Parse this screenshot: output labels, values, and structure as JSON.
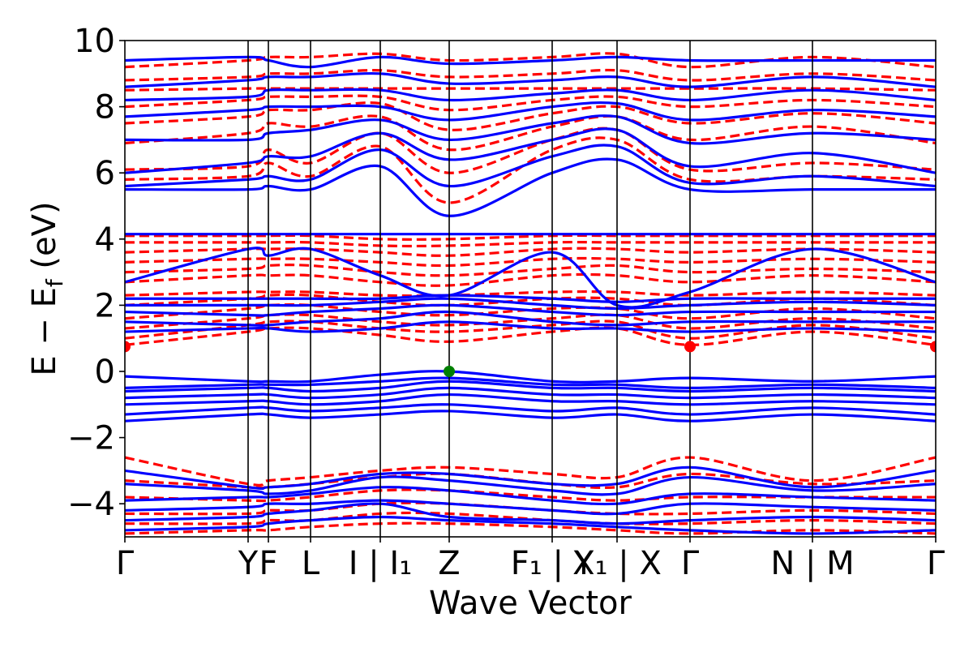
{
  "chart_data": {
    "type": "line",
    "title": "",
    "xlabel": "Wave Vector",
    "ylabel": "E − E",
    "ylabel_sub": "f",
    "ylabel_unit": " (eV)",
    "ylim": [
      -5,
      10
    ],
    "yticks": [
      {
        "value": 10,
        "label": "10"
      },
      {
        "value": 8,
        "label": "8"
      },
      {
        "value": 6,
        "label": "6"
      },
      {
        "value": 4,
        "label": "4"
      },
      {
        "value": 2,
        "label": "2"
      },
      {
        "value": 0,
        "label": "0"
      },
      {
        "value": -2,
        "label": "−2"
      },
      {
        "value": -4,
        "label": "−4"
      }
    ],
    "xlim": [
      0,
      1
    ],
    "kpoints": [
      {
        "x": 0.0,
        "label": "Γ"
      },
      {
        "x": 0.152,
        "label": "Y"
      },
      {
        "x": 0.177,
        "label": "F"
      },
      {
        "x": 0.229,
        "label": "L"
      },
      {
        "x": 0.315,
        "label": "I | I₁"
      },
      {
        "x": 0.4,
        "label": "Z"
      },
      {
        "x": 0.527,
        "label": "F₁ | Y"
      },
      {
        "x": 0.607,
        "label": "X₁ | X"
      },
      {
        "x": 0.697,
        "label": "Γ"
      },
      {
        "x": 0.848,
        "label": "N | M"
      },
      {
        "x": 1.0,
        "label": "Γ"
      }
    ],
    "series": [
      {
        "style": "solid",
        "color": "#0000ff",
        "bands": [
          [
            -4.8,
            -4.7,
            -4.6,
            -4.5,
            -4.4,
            -4.5,
            -4.6,
            -4.7,
            -4.8,
            -4.9,
            -4.8
          ],
          [
            -4.5,
            -4.4,
            -4.3,
            -4.2,
            -4.0,
            -4.4,
            -4.5,
            -4.6,
            -4.5,
            -4.4,
            -4.5
          ],
          [
            -4.2,
            -4.1,
            -4.0,
            -4.0,
            -3.9,
            -4.0,
            -4.2,
            -4.3,
            -4.0,
            -4.1,
            -4.2
          ],
          [
            -3.9,
            -3.8,
            -3.8,
            -3.7,
            -3.5,
            -3.6,
            -3.9,
            -4.0,
            -3.7,
            -3.8,
            -3.9
          ],
          [
            -3.4,
            -3.6,
            -3.7,
            -3.6,
            -3.2,
            -3.3,
            -3.6,
            -3.7,
            -3.2,
            -3.6,
            -3.4
          ],
          [
            -3.0,
            -3.5,
            -3.5,
            -3.4,
            -3.1,
            -3.1,
            -3.4,
            -3.4,
            -2.9,
            -3.5,
            -3.0
          ],
          [
            -1.5,
            -1.3,
            -1.3,
            -1.4,
            -1.3,
            -1.2,
            -1.4,
            -1.3,
            -1.5,
            -1.3,
            -1.5
          ],
          [
            -1.3,
            -1.1,
            -1.1,
            -1.2,
            -1.1,
            -1.0,
            -1.2,
            -1.1,
            -1.3,
            -1.1,
            -1.3
          ],
          [
            -1.0,
            -0.9,
            -0.9,
            -1.0,
            -0.9,
            -0.7,
            -0.9,
            -0.9,
            -1.0,
            -0.9,
            -1.0
          ],
          [
            -0.8,
            -0.7,
            -0.7,
            -0.8,
            -0.7,
            -0.5,
            -0.7,
            -0.7,
            -0.8,
            -0.7,
            -0.8
          ],
          [
            -0.6,
            -0.5,
            -0.5,
            -0.6,
            -0.5,
            -0.3,
            -0.5,
            -0.5,
            -0.6,
            -0.5,
            -0.6
          ],
          [
            -0.5,
            -0.4,
            -0.4,
            -0.4,
            -0.3,
            -0.2,
            -0.4,
            -0.4,
            -0.5,
            -0.4,
            -0.5
          ],
          [
            -0.15,
            -0.3,
            -0.3,
            -0.3,
            -0.1,
            0.0,
            -0.3,
            -0.3,
            -0.2,
            -0.3,
            -0.15
          ],
          [
            1.2,
            1.3,
            1.3,
            1.2,
            1.3,
            1.5,
            1.3,
            1.3,
            1.2,
            1.3,
            1.2
          ],
          [
            1.5,
            1.4,
            1.4,
            1.5,
            1.6,
            1.8,
            1.5,
            1.4,
            1.5,
            1.5,
            1.5
          ],
          [
            1.8,
            1.7,
            1.7,
            1.8,
            1.9,
            2.0,
            1.8,
            1.7,
            1.8,
            1.8,
            1.8
          ],
          [
            2.0,
            2.0,
            2.0,
            2.0,
            2.1,
            2.2,
            2.0,
            1.9,
            2.0,
            2.1,
            2.0
          ],
          [
            2.2,
            2.2,
            2.2,
            2.2,
            2.2,
            2.3,
            2.2,
            2.1,
            2.2,
            2.2,
            2.2
          ],
          [
            2.7,
            3.7,
            3.5,
            3.7,
            2.9,
            2.3,
            3.6,
            2.0,
            2.4,
            3.7,
            2.7
          ],
          [
            4.15,
            4.15,
            4.15,
            4.15,
            4.15,
            4.15,
            4.15,
            4.15,
            4.15,
            4.15,
            4.15
          ],
          [
            5.5,
            5.5,
            5.6,
            5.5,
            6.2,
            4.7,
            6.0,
            6.4,
            5.5,
            5.5,
            5.5
          ],
          [
            5.6,
            5.8,
            5.9,
            5.8,
            6.7,
            5.6,
            6.5,
            6.8,
            5.7,
            5.9,
            5.6
          ],
          [
            6.0,
            6.3,
            6.5,
            6.5,
            7.2,
            6.4,
            7.0,
            7.3,
            6.2,
            6.6,
            6.0
          ],
          [
            7.0,
            7.0,
            7.2,
            7.3,
            7.6,
            7.0,
            7.5,
            7.7,
            6.9,
            7.2,
            7.0
          ],
          [
            7.7,
            7.9,
            8.0,
            8.0,
            8.0,
            7.6,
            8.0,
            8.1,
            7.6,
            7.9,
            7.7
          ],
          [
            8.2,
            8.3,
            8.5,
            8.5,
            8.5,
            8.2,
            8.4,
            8.5,
            8.2,
            8.5,
            8.2
          ],
          [
            8.6,
            8.8,
            8.9,
            8.9,
            9.0,
            8.7,
            8.8,
            8.9,
            8.6,
            8.9,
            8.6
          ],
          [
            9.4,
            9.5,
            9.4,
            9.2,
            9.5,
            9.3,
            9.4,
            9.5,
            9.4,
            9.4,
            9.4
          ]
        ]
      },
      {
        "style": "dashed",
        "color": "#ff0000",
        "bands": [
          [
            -4.9,
            -4.8,
            -4.8,
            -4.7,
            -4.6,
            -4.6,
            -4.7,
            -4.8,
            -4.9,
            -4.8,
            -4.9
          ],
          [
            -4.6,
            -4.6,
            -4.5,
            -4.5,
            -4.3,
            -4.3,
            -4.5,
            -4.6,
            -4.6,
            -4.5,
            -4.6
          ],
          [
            -4.3,
            -4.3,
            -4.2,
            -4.2,
            -4.0,
            -4.0,
            -4.2,
            -4.3,
            -4.3,
            -4.2,
            -4.3
          ],
          [
            -3.8,
            -3.9,
            -3.9,
            -3.8,
            -3.6,
            -3.6,
            -3.8,
            -3.9,
            -3.8,
            -3.8,
            -3.8
          ],
          [
            -3.3,
            -3.5,
            -3.5,
            -3.4,
            -3.2,
            -3.1,
            -3.4,
            -3.5,
            -3.1,
            -3.4,
            -3.3
          ],
          [
            -2.6,
            -3.4,
            -3.3,
            -3.2,
            -3.0,
            -2.9,
            -3.1,
            -3.2,
            -2.6,
            -3.3,
            -2.6
          ],
          [
            0.8,
            1.2,
            1.3,
            1.3,
            1.1,
            0.9,
            1.2,
            1.3,
            0.8,
            1.2,
            0.8
          ],
          [
            1.0,
            1.4,
            1.5,
            1.5,
            1.3,
            1.2,
            1.4,
            1.5,
            1.0,
            1.4,
            1.0
          ],
          [
            1.3,
            1.6,
            1.7,
            1.7,
            1.5,
            1.4,
            1.6,
            1.7,
            1.3,
            1.6,
            1.3
          ],
          [
            1.6,
            1.9,
            2.0,
            2.0,
            1.8,
            1.7,
            1.9,
            1.9,
            1.6,
            1.9,
            1.6
          ],
          [
            2.0,
            2.2,
            2.3,
            2.3,
            2.1,
            2.0,
            2.2,
            2.2,
            2.0,
            2.2,
            2.0
          ],
          [
            2.3,
            2.4,
            2.4,
            2.4,
            2.3,
            2.3,
            2.4,
            2.4,
            2.3,
            2.4,
            2.3
          ],
          [
            2.7,
            2.9,
            2.9,
            2.9,
            2.7,
            2.6,
            2.9,
            2.9,
            2.7,
            2.9,
            2.7
          ],
          [
            3.0,
            3.1,
            3.2,
            3.2,
            3.0,
            2.9,
            3.1,
            3.2,
            3.0,
            3.1,
            3.0
          ],
          [
            3.3,
            3.4,
            3.4,
            3.4,
            3.3,
            3.2,
            3.4,
            3.4,
            3.3,
            3.4,
            3.3
          ],
          [
            3.6,
            3.7,
            3.7,
            3.7,
            3.6,
            3.5,
            3.7,
            3.7,
            3.6,
            3.7,
            3.6
          ],
          [
            3.9,
            3.9,
            3.9,
            3.9,
            3.8,
            3.8,
            3.9,
            3.9,
            3.9,
            3.9,
            3.9
          ],
          [
            4.1,
            4.1,
            4.1,
            4.1,
            4.0,
            4.0,
            4.1,
            4.1,
            4.1,
            4.1,
            4.1
          ],
          [
            5.8,
            5.9,
            6.3,
            5.9,
            6.8,
            5.1,
            6.7,
            7.0,
            5.8,
            5.9,
            5.8
          ],
          [
            6.1,
            6.2,
            6.7,
            6.3,
            7.2,
            6.0,
            7.0,
            7.3,
            6.1,
            6.3,
            6.1
          ],
          [
            6.9,
            7.2,
            7.5,
            7.4,
            7.7,
            6.7,
            7.4,
            7.7,
            7.0,
            7.4,
            6.9
          ],
          [
            7.5,
            7.7,
            7.9,
            7.9,
            8.1,
            7.3,
            7.8,
            8.0,
            7.5,
            7.8,
            7.5
          ],
          [
            8.0,
            8.2,
            8.3,
            8.3,
            8.3,
            7.9,
            8.2,
            8.3,
            8.0,
            8.2,
            8.0
          ],
          [
            8.5,
            8.55,
            8.55,
            8.55,
            8.55,
            8.55,
            8.55,
            8.55,
            8.55,
            8.55,
            8.5
          ],
          [
            8.8,
            8.9,
            9.0,
            9.0,
            9.1,
            8.9,
            9.0,
            9.1,
            8.8,
            9.0,
            8.8
          ],
          [
            9.2,
            9.4,
            9.5,
            9.5,
            9.6,
            9.4,
            9.5,
            9.6,
            9.2,
            9.5,
            9.2
          ]
        ]
      }
    ],
    "markers": [
      {
        "x": 0.0,
        "y": 0.75,
        "color": "#ff0000"
      },
      {
        "x": 0.697,
        "y": 0.75,
        "color": "#ff0000"
      },
      {
        "x": 1.0,
        "y": 0.75,
        "color": "#ff0000"
      },
      {
        "x": 0.4,
        "y": 0.0,
        "color": "#008000"
      }
    ],
    "grid": false,
    "legend": "none"
  }
}
